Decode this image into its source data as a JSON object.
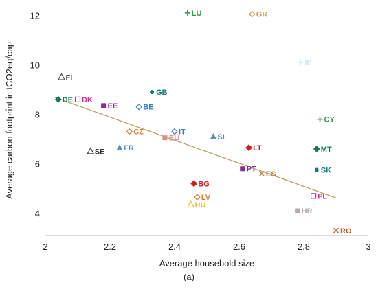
{
  "chart_data": {
    "type": "scatter",
    "xlabel": "Average household size",
    "ylabel": "Average carbon footprint  in tCO2eq/cap",
    "xlim": [
      2,
      3
    ],
    "ylim": [
      3.1,
      12.4
    ],
    "xticks": [
      "2",
      "2.2",
      "2.4",
      "2.6",
      "2.8",
      "3"
    ],
    "yticks": [
      "4",
      "6",
      "8",
      "10",
      "12"
    ],
    "grid": false,
    "legend": "none",
    "trendline": {
      "x": [
        2.03,
        2.9
      ],
      "y": [
        8.68,
        4.62
      ],
      "color": "#b9a066"
    },
    "points": [
      {
        "label": "LU",
        "x": 2.44,
        "y": 12.1,
        "marker": "plus",
        "color": "#2e9e44"
      },
      {
        "label": "GR",
        "x": 2.64,
        "y": 12.05,
        "marker": "diamond-open",
        "color": "#d39a4a"
      },
      {
        "label": "IE",
        "x": 2.79,
        "y": 10.1,
        "marker": "plus",
        "color": "#cfe8f5"
      },
      {
        "label": "FI",
        "x": 2.05,
        "y": 9.5,
        "marker": "triangle-open",
        "color": "#555555"
      },
      {
        "label": "GB",
        "x": 2.33,
        "y": 8.9,
        "marker": "circle",
        "color": "#0f7a7a"
      },
      {
        "label": "DE",
        "x": 2.04,
        "y": 8.6,
        "marker": "diamond",
        "color": "#137a5e"
      },
      {
        "label": "DK",
        "x": 2.1,
        "y": 8.6,
        "marker": "square-open",
        "color": "#cc2a8e"
      },
      {
        "label": "EE",
        "x": 2.18,
        "y": 8.35,
        "marker": "square",
        "color": "#8a2b8f"
      },
      {
        "label": "BE",
        "x": 2.29,
        "y": 8.3,
        "marker": "diamond-open",
        "color": "#3d7fbf"
      },
      {
        "label": "CY",
        "x": 2.85,
        "y": 7.8,
        "marker": "plus",
        "color": "#2e9e44"
      },
      {
        "label": "CZ",
        "x": 2.26,
        "y": 7.3,
        "marker": "diamond-open",
        "color": "#e07a35"
      },
      {
        "label": "IT",
        "x": 2.4,
        "y": 7.3,
        "marker": "diamond-open",
        "color": "#3f78c9"
      },
      {
        "label": "EU",
        "x": 2.37,
        "y": 7.05,
        "marker": "square",
        "color": "#d6938a"
      },
      {
        "label": "SI",
        "x": 2.52,
        "y": 7.1,
        "marker": "triangle",
        "color": "#5a90b8"
      },
      {
        "label": "FR",
        "x": 2.23,
        "y": 6.65,
        "marker": "triangle",
        "color": "#5a90b8"
      },
      {
        "label": "SE",
        "x": 2.14,
        "y": 6.5,
        "marker": "triangle-open",
        "color": "#333333"
      },
      {
        "label": "LT",
        "x": 2.63,
        "y": 6.65,
        "marker": "diamond",
        "color": "#cc1f1f"
      },
      {
        "label": "MT",
        "x": 2.84,
        "y": 6.6,
        "marker": "diamond",
        "color": "#137a5e"
      },
      {
        "label": "PT",
        "x": 2.61,
        "y": 5.8,
        "marker": "square",
        "color": "#8a2b8f"
      },
      {
        "label": "SK",
        "x": 2.84,
        "y": 5.75,
        "marker": "circle",
        "color": "#0f7a7a"
      },
      {
        "label": "ES",
        "x": 2.67,
        "y": 5.6,
        "marker": "cross",
        "color": "#b07a2a"
      },
      {
        "label": "BG",
        "x": 2.46,
        "y": 5.2,
        "marker": "diamond",
        "color": "#cc1f1f"
      },
      {
        "label": "LV",
        "x": 2.47,
        "y": 4.65,
        "marker": "diamond-open",
        "color": "#e07a35"
      },
      {
        "label": "PL",
        "x": 2.83,
        "y": 4.7,
        "marker": "square-open",
        "color": "#cc2a8e"
      },
      {
        "label": "HU",
        "x": 2.45,
        "y": 4.35,
        "marker": "triangle-open",
        "color": "#e8c21a"
      },
      {
        "label": "HR",
        "x": 2.78,
        "y": 4.1,
        "marker": "square",
        "color": "#b8aaa8"
      },
      {
        "label": "RO",
        "x": 2.9,
        "y": 3.3,
        "marker": "cross",
        "color": "#b85a2a"
      }
    ]
  },
  "caption": "(a)"
}
